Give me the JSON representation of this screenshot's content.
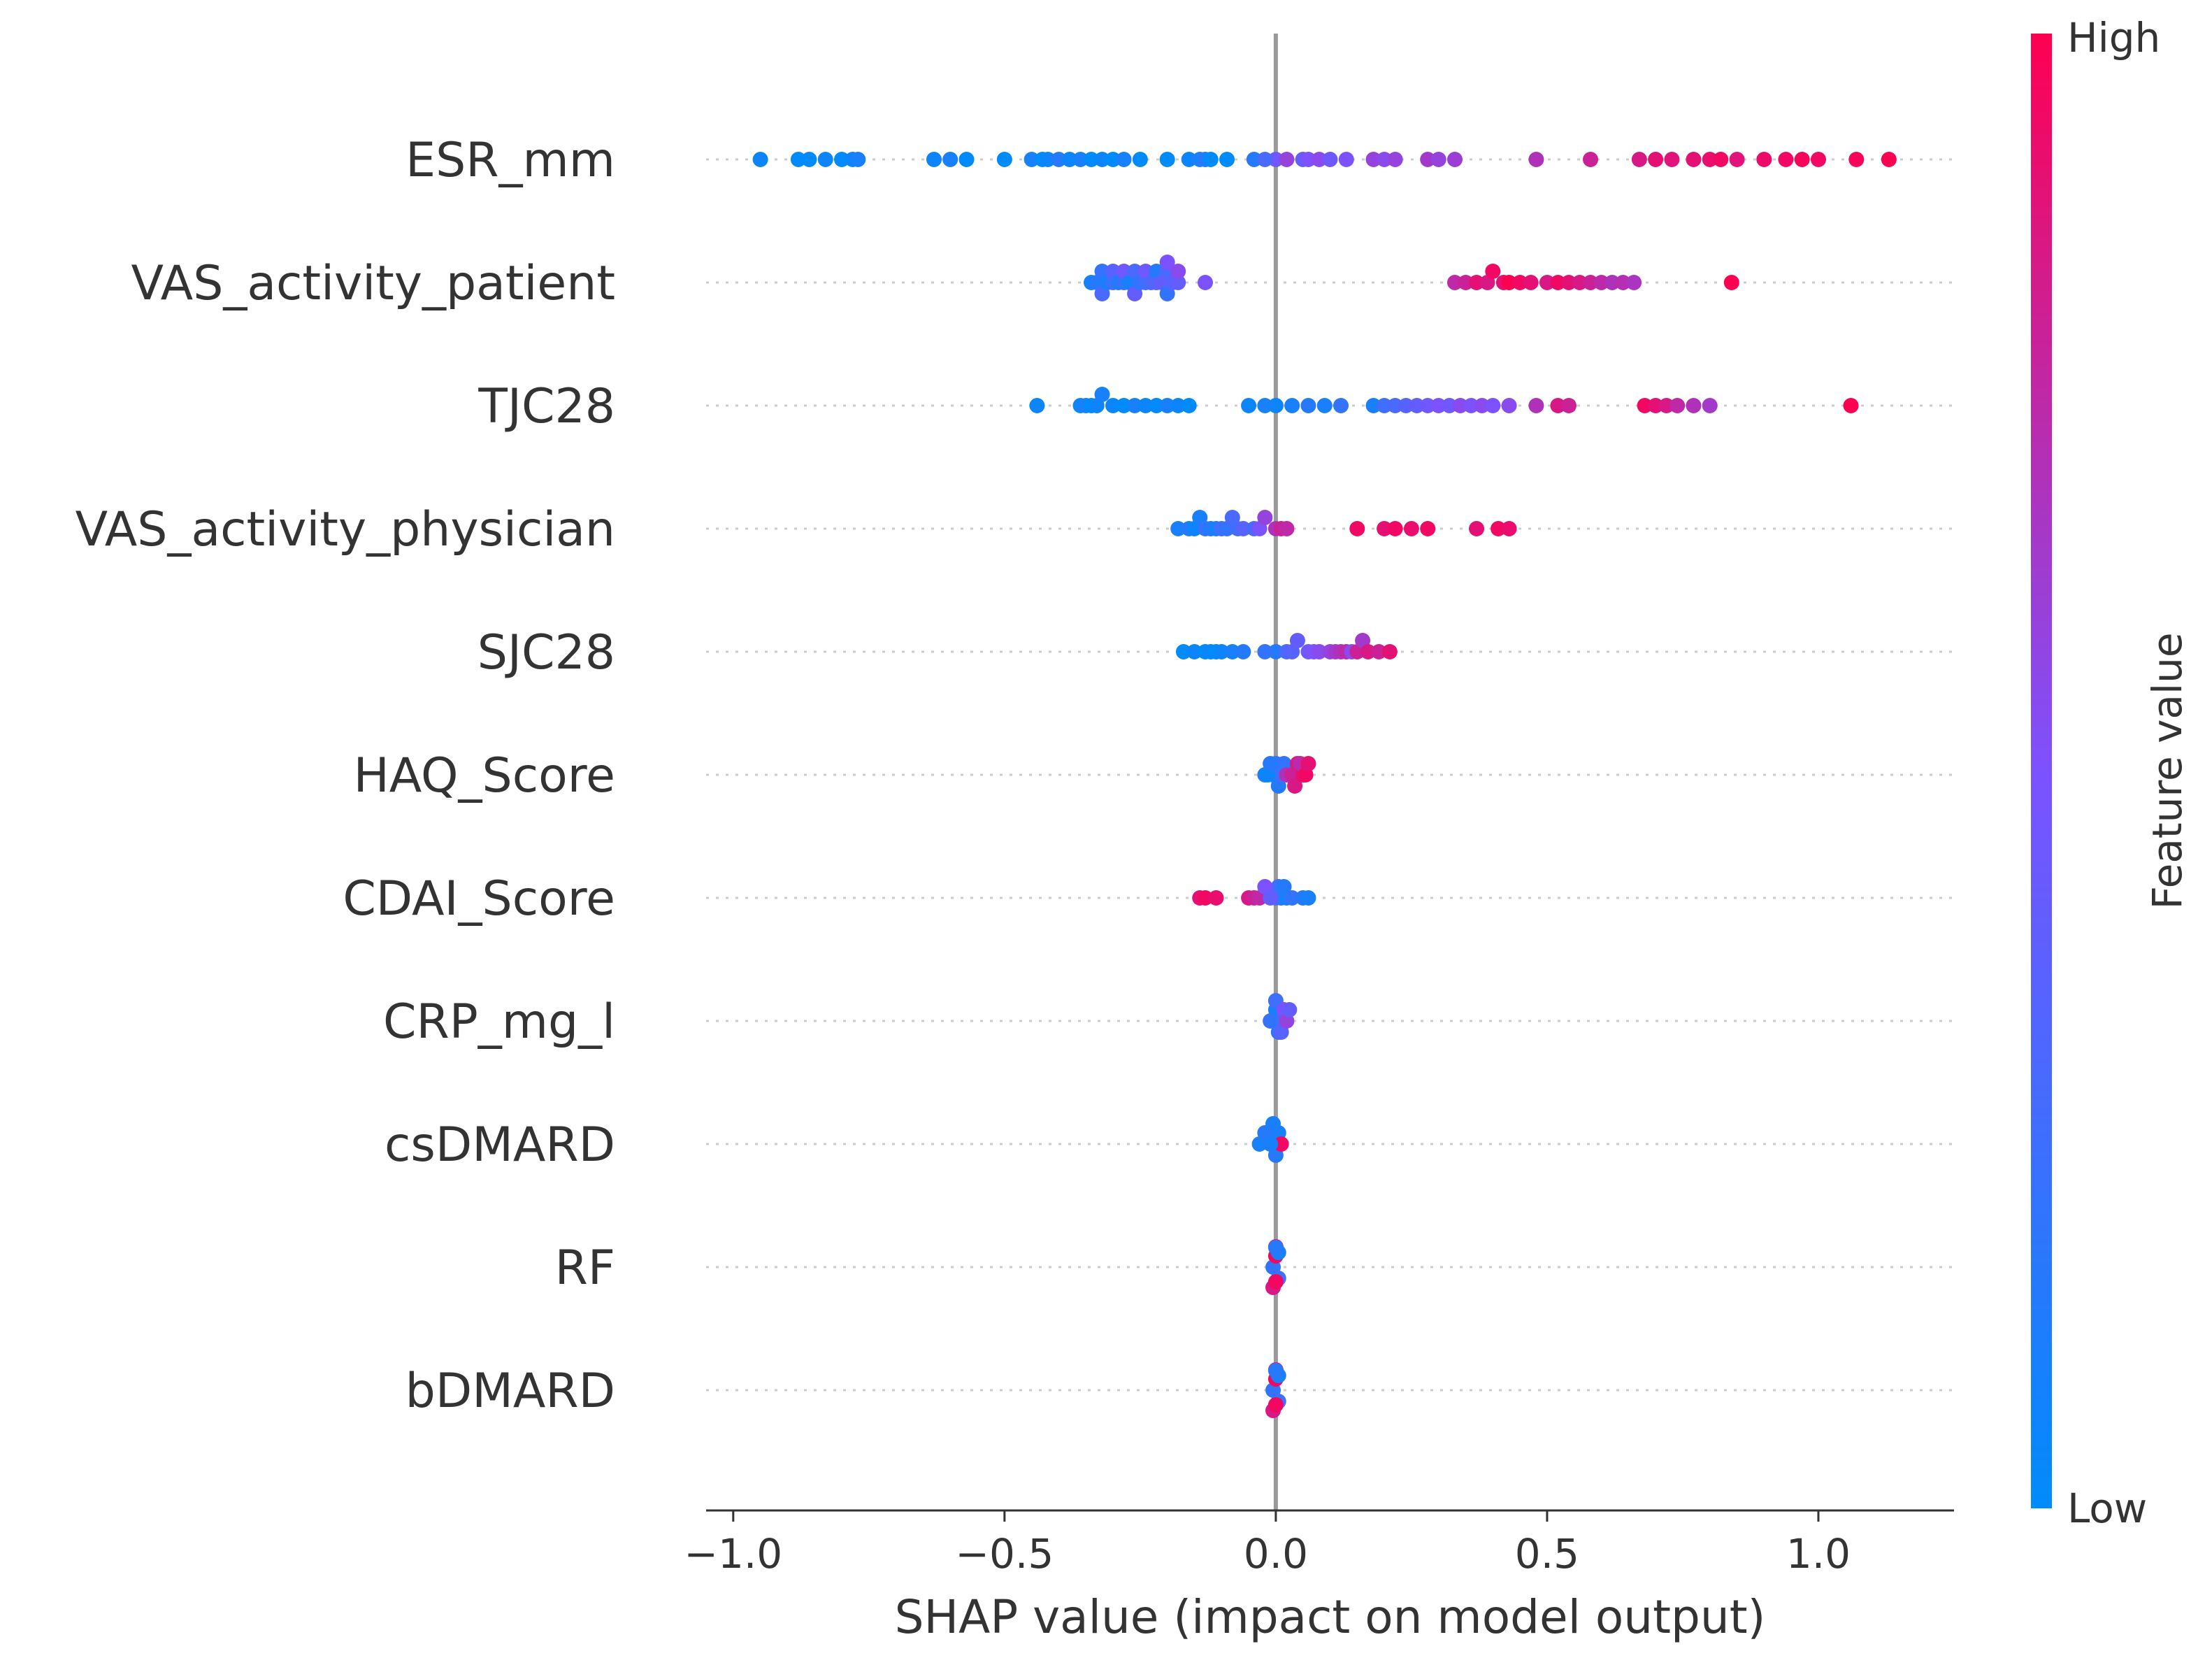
{
  "chart_data": {
    "type": "scatter",
    "subtype": "shap-beeswarm",
    "title": "",
    "xlabel": "SHAP value (impact on model output)",
    "ylabel": "",
    "xlim": [
      -1.05,
      1.25
    ],
    "xticks": [
      -1.0,
      -0.5,
      0.0,
      0.5,
      1.0
    ],
    "xtick_labels": [
      "−1.0",
      "−0.5",
      "0.0",
      "0.5",
      "1.0"
    ],
    "grid": false,
    "zero_line": true,
    "colorbar": {
      "title": "Feature value",
      "high_label": "High",
      "low_label": "Low",
      "low_color": "#008bfb",
      "mid_color": "#7c52ff",
      "high_color": "#ff0051"
    },
    "features": [
      {
        "name": "ESR_mm",
        "points": [
          [
            -0.95,
            0.05
          ],
          [
            -0.88,
            0.0
          ],
          [
            -0.86,
            0.0
          ],
          [
            -0.83,
            0.05
          ],
          [
            -0.8,
            0.0
          ],
          [
            -0.78,
            0.05
          ],
          [
            -0.77,
            0.1
          ],
          [
            -0.63,
            0.05
          ],
          [
            -0.6,
            0.1
          ],
          [
            -0.57,
            0.0
          ],
          [
            -0.5,
            0.0
          ],
          [
            -0.45,
            0.1
          ],
          [
            -0.43,
            0.0
          ],
          [
            -0.42,
            0.05
          ],
          [
            -0.4,
            0.15
          ],
          [
            -0.38,
            0.05
          ],
          [
            -0.36,
            0.1
          ],
          [
            -0.34,
            0.0
          ],
          [
            -0.32,
            0.05
          ],
          [
            -0.3,
            0.0
          ],
          [
            -0.28,
            0.1
          ],
          [
            -0.25,
            0.0
          ],
          [
            -0.2,
            0.0
          ],
          [
            -0.16,
            0.05
          ],
          [
            -0.14,
            0.1
          ],
          [
            -0.13,
            0.15
          ],
          [
            -0.12,
            0.0
          ],
          [
            -0.09,
            0.0
          ],
          [
            -0.04,
            0.15
          ],
          [
            -0.02,
            0.3
          ],
          [
            0.0,
            0.45
          ],
          [
            0.02,
            0.6
          ],
          [
            0.05,
            0.4
          ],
          [
            0.06,
            0.5
          ],
          [
            0.08,
            0.55
          ],
          [
            0.1,
            0.45
          ],
          [
            0.13,
            0.5
          ],
          [
            0.18,
            0.6
          ],
          [
            0.2,
            0.55
          ],
          [
            0.22,
            0.6
          ],
          [
            0.28,
            0.65
          ],
          [
            0.3,
            0.6
          ],
          [
            0.33,
            0.62
          ],
          [
            0.48,
            0.7
          ],
          [
            0.58,
            0.8
          ],
          [
            0.67,
            0.85
          ],
          [
            0.7,
            0.9
          ],
          [
            0.73,
            0.88
          ],
          [
            0.77,
            0.9
          ],
          [
            0.8,
            0.92
          ],
          [
            0.82,
            0.95
          ],
          [
            0.85,
            0.88
          ],
          [
            0.9,
            0.93
          ],
          [
            0.94,
            0.95
          ],
          [
            0.97,
            0.97
          ],
          [
            1.0,
            0.95
          ],
          [
            1.07,
            0.98
          ],
          [
            1.13,
            1.0
          ]
        ]
      },
      {
        "name": "VAS_activity_patient",
        "points": [
          [
            -0.34,
            0.1
          ],
          [
            -0.33,
            0.15
          ],
          [
            -0.32,
            0.2
          ],
          [
            -0.31,
            0.1
          ],
          [
            -0.3,
            0.25
          ],
          [
            -0.29,
            0.15
          ],
          [
            -0.28,
            0.2
          ],
          [
            -0.27,
            0.1
          ],
          [
            -0.26,
            0.3
          ],
          [
            -0.25,
            0.2
          ],
          [
            -0.24,
            0.25
          ],
          [
            -0.23,
            0.3
          ],
          [
            -0.22,
            0.35
          ],
          [
            -0.21,
            0.4
          ],
          [
            -0.2,
            0.3
          ],
          [
            -0.19,
            0.35
          ],
          [
            -0.18,
            0.4
          ],
          [
            -0.2,
            0.2
          ],
          [
            -0.22,
            0.15
          ],
          [
            -0.26,
            0.4
          ],
          [
            -0.28,
            0.45
          ],
          [
            -0.3,
            0.35
          ],
          [
            -0.32,
            0.3
          ],
          [
            -0.24,
            0.45
          ],
          [
            -0.2,
            0.5
          ],
          [
            -0.18,
            0.55
          ],
          [
            -0.13,
            0.5
          ],
          [
            0.33,
            0.75
          ],
          [
            0.35,
            0.8
          ],
          [
            0.37,
            0.9
          ],
          [
            0.39,
            0.85
          ],
          [
            0.4,
            0.95
          ],
          [
            0.42,
            0.9
          ],
          [
            0.43,
            1.0
          ],
          [
            0.45,
            0.95
          ],
          [
            0.47,
            0.9
          ],
          [
            0.5,
            0.85
          ],
          [
            0.52,
            0.95
          ],
          [
            0.54,
            0.9
          ],
          [
            0.56,
            0.85
          ],
          [
            0.58,
            0.8
          ],
          [
            0.6,
            0.75
          ],
          [
            0.62,
            0.7
          ],
          [
            0.64,
            0.72
          ],
          [
            0.66,
            0.68
          ],
          [
            0.84,
            1.0
          ]
        ]
      },
      {
        "name": "TJC28",
        "points": [
          [
            -0.44,
            0.05
          ],
          [
            -0.36,
            0.05
          ],
          [
            -0.35,
            0.1
          ],
          [
            -0.34,
            0.0
          ],
          [
            -0.33,
            0.05
          ],
          [
            -0.32,
            0.1
          ],
          [
            -0.3,
            0.05
          ],
          [
            -0.28,
            0.0
          ],
          [
            -0.26,
            0.1
          ],
          [
            -0.24,
            0.05
          ],
          [
            -0.22,
            0.0
          ],
          [
            -0.2,
            0.1
          ],
          [
            -0.18,
            0.05
          ],
          [
            -0.16,
            0.0
          ],
          [
            -0.05,
            0.05
          ],
          [
            -0.02,
            0.1
          ],
          [
            0.0,
            0.05
          ],
          [
            0.03,
            0.1
          ],
          [
            0.06,
            0.15
          ],
          [
            0.09,
            0.1
          ],
          [
            0.12,
            0.2
          ],
          [
            0.18,
            0.1
          ],
          [
            0.2,
            0.25
          ],
          [
            0.22,
            0.3
          ],
          [
            0.24,
            0.35
          ],
          [
            0.26,
            0.4
          ],
          [
            0.28,
            0.45
          ],
          [
            0.3,
            0.5
          ],
          [
            0.32,
            0.45
          ],
          [
            0.34,
            0.55
          ],
          [
            0.36,
            0.5
          ],
          [
            0.38,
            0.55
          ],
          [
            0.4,
            0.5
          ],
          [
            0.43,
            0.55
          ],
          [
            0.48,
            0.7
          ],
          [
            0.52,
            0.85
          ],
          [
            0.54,
            0.8
          ],
          [
            0.68,
            0.95
          ],
          [
            0.7,
            0.9
          ],
          [
            0.72,
            0.85
          ],
          [
            0.74,
            0.75
          ],
          [
            0.77,
            0.7
          ],
          [
            0.8,
            0.65
          ],
          [
            1.06,
            1.0
          ]
        ]
      },
      {
        "name": "VAS_activity_physician",
        "points": [
          [
            -0.18,
            0.1
          ],
          [
            -0.16,
            0.15
          ],
          [
            -0.15,
            0.05
          ],
          [
            -0.14,
            0.1
          ],
          [
            -0.13,
            0.2
          ],
          [
            -0.12,
            0.15
          ],
          [
            -0.11,
            0.1
          ],
          [
            -0.1,
            0.25
          ],
          [
            -0.09,
            0.2
          ],
          [
            -0.08,
            0.3
          ],
          [
            -0.07,
            0.25
          ],
          [
            -0.06,
            0.35
          ],
          [
            -0.04,
            0.3
          ],
          [
            -0.03,
            0.5
          ],
          [
            -0.02,
            0.6
          ],
          [
            0.0,
            0.7
          ],
          [
            0.01,
            0.8
          ],
          [
            0.02,
            0.75
          ],
          [
            0.15,
            0.95
          ],
          [
            0.2,
            0.9
          ],
          [
            0.22,
            0.95
          ],
          [
            0.25,
            0.92
          ],
          [
            0.28,
            0.95
          ],
          [
            0.37,
            0.9
          ],
          [
            0.41,
            0.95
          ],
          [
            0.43,
            0.92
          ]
        ]
      },
      {
        "name": "SJC28",
        "points": [
          [
            -0.17,
            0.0
          ],
          [
            -0.15,
            0.05
          ],
          [
            -0.13,
            0.0
          ],
          [
            -0.12,
            0.05
          ],
          [
            -0.11,
            0.0
          ],
          [
            -0.1,
            0.05
          ],
          [
            -0.08,
            0.1
          ],
          [
            -0.06,
            0.15
          ],
          [
            -0.02,
            0.2
          ],
          [
            0.0,
            0.15
          ],
          [
            0.02,
            0.3
          ],
          [
            0.03,
            0.35
          ],
          [
            0.04,
            0.4
          ],
          [
            0.06,
            0.45
          ],
          [
            0.07,
            0.5
          ],
          [
            0.08,
            0.55
          ],
          [
            0.1,
            0.6
          ],
          [
            0.11,
            0.65
          ],
          [
            0.12,
            0.7
          ],
          [
            0.13,
            0.75
          ],
          [
            0.15,
            0.8
          ],
          [
            0.17,
            0.85
          ],
          [
            0.19,
            0.8
          ],
          [
            0.21,
            0.9
          ],
          [
            0.16,
            0.65
          ],
          [
            0.14,
            0.55
          ]
        ]
      },
      {
        "name": "HAQ_Score",
        "points": [
          [
            -0.02,
            0.1
          ],
          [
            -0.015,
            0.05
          ],
          [
            -0.01,
            0.15
          ],
          [
            -0.005,
            0.1
          ],
          [
            0.0,
            0.2
          ],
          [
            0.005,
            0.15
          ],
          [
            0.01,
            0.25
          ],
          [
            0.015,
            0.2
          ],
          [
            0.02,
            0.7
          ],
          [
            0.03,
            0.8
          ],
          [
            0.04,
            0.85
          ],
          [
            0.05,
            0.9
          ],
          [
            0.055,
            0.95
          ],
          [
            0.06,
            0.9
          ],
          [
            0.045,
            0.75
          ],
          [
            0.035,
            0.85
          ]
        ]
      },
      {
        "name": "CDAI_Score",
        "points": [
          [
            -0.14,
            0.9
          ],
          [
            -0.13,
            0.95
          ],
          [
            -0.11,
            0.92
          ],
          [
            -0.05,
            0.85
          ],
          [
            -0.04,
            0.8
          ],
          [
            -0.03,
            0.75
          ],
          [
            -0.01,
            0.4
          ],
          [
            0.0,
            0.3
          ],
          [
            0.01,
            0.2
          ],
          [
            0.015,
            0.15
          ],
          [
            0.02,
            0.1
          ],
          [
            0.03,
            0.2
          ],
          [
            0.05,
            0.15
          ],
          [
            0.06,
            0.1
          ],
          [
            -0.02,
            0.5
          ],
          [
            0.005,
            0.25
          ]
        ]
      },
      {
        "name": "CRP_mg_l",
        "points": [
          [
            -0.01,
            0.2
          ],
          [
            -0.005,
            0.15
          ],
          [
            0.0,
            0.1
          ],
          [
            0.005,
            0.2
          ],
          [
            0.01,
            0.3
          ],
          [
            0.015,
            0.5
          ],
          [
            0.02,
            0.6
          ],
          [
            0.025,
            0.4
          ],
          [
            0.0,
            0.25
          ],
          [
            0.01,
            0.35
          ]
        ]
      },
      {
        "name": "csDMARD",
        "points": [
          [
            -0.03,
            0.1
          ],
          [
            -0.02,
            0.15
          ],
          [
            -0.01,
            0.1
          ],
          [
            0.0,
            0.05
          ],
          [
            0.005,
            0.1
          ],
          [
            0.01,
            0.95
          ],
          [
            0.0,
            0.15
          ],
          [
            -0.005,
            0.1
          ]
        ]
      },
      {
        "name": "RF",
        "points": [
          [
            -0.005,
            0.2
          ],
          [
            0.0,
            0.95
          ],
          [
            0.005,
            0.25
          ],
          [
            0.0,
            0.9
          ],
          [
            -0.005,
            0.85
          ],
          [
            0.005,
            0.1
          ],
          [
            0.0,
            0.95
          ],
          [
            0.0,
            0.15
          ]
        ]
      },
      {
        "name": "bDMARD",
        "points": [
          [
            -0.005,
            0.2
          ],
          [
            0.0,
            0.95
          ],
          [
            0.005,
            0.25
          ],
          [
            0.0,
            0.9
          ],
          [
            -0.005,
            0.85
          ],
          [
            0.005,
            0.1
          ],
          [
            0.0,
            0.95
          ],
          [
            0.0,
            0.15
          ]
        ]
      }
    ]
  }
}
